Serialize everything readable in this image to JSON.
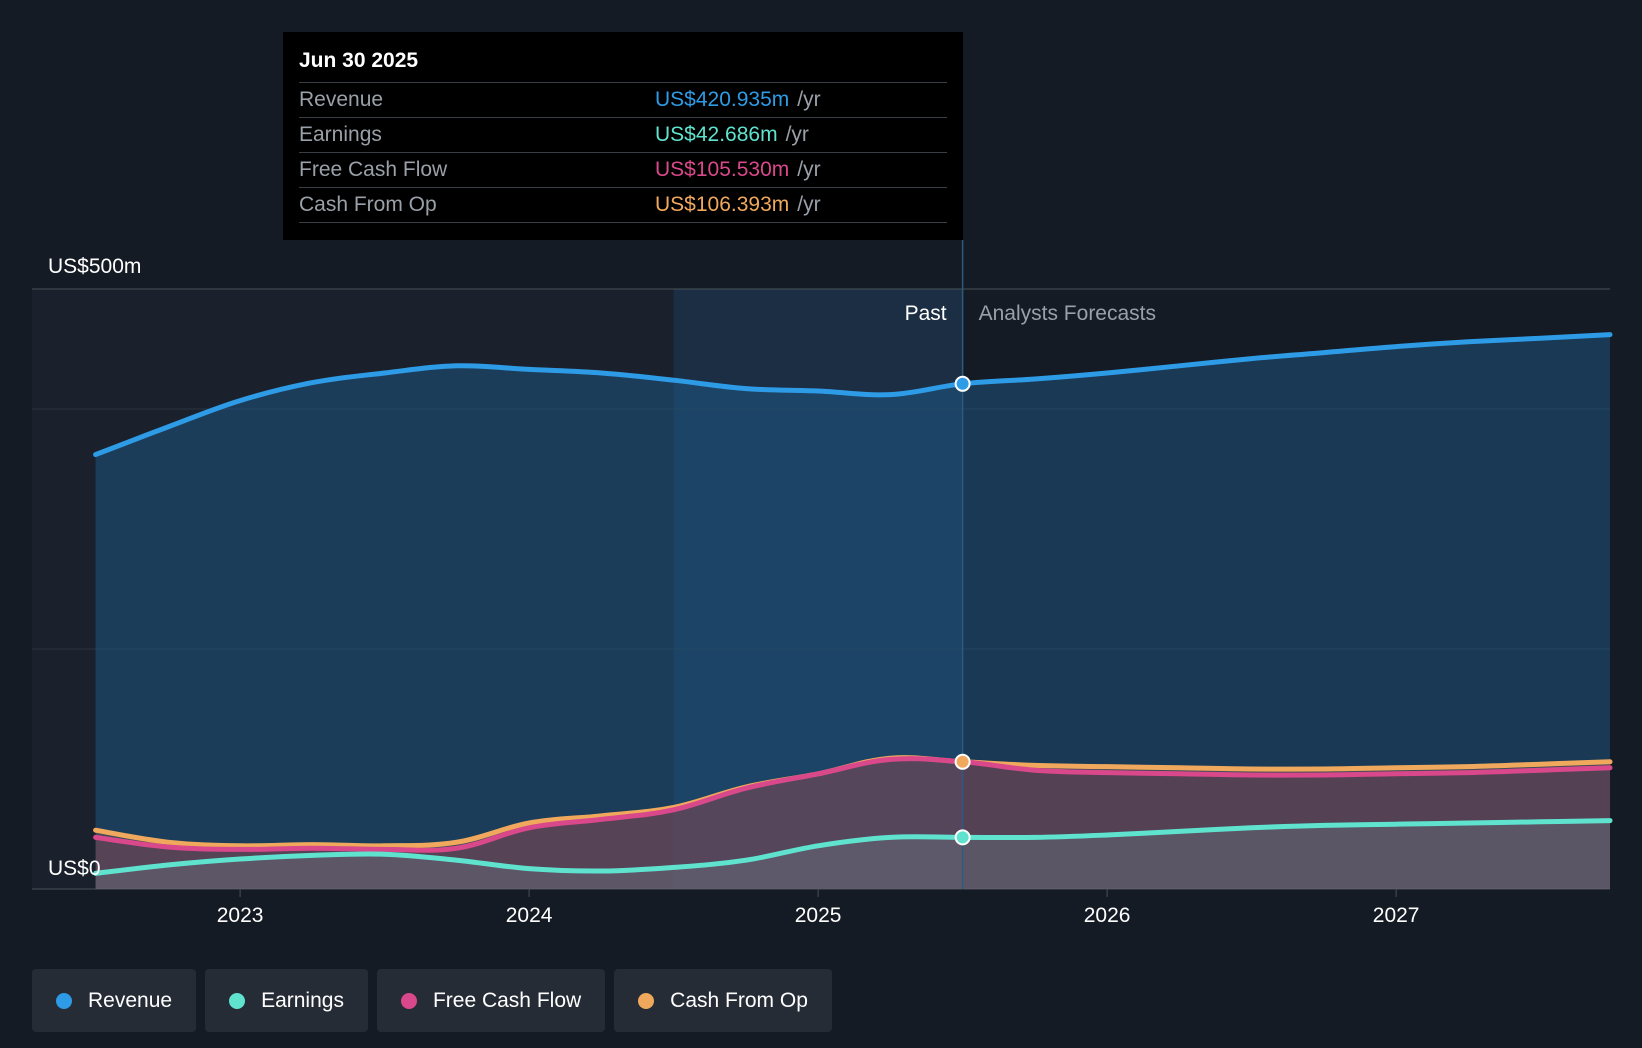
{
  "tooltip": {
    "date": "Jun 30 2025",
    "rows": [
      {
        "label": "Revenue",
        "value": "US$420.935m",
        "unit": "/yr",
        "color": "#2e9be6"
      },
      {
        "label": "Earnings",
        "value": "US$42.686m",
        "unit": "/yr",
        "color": "#5fe3cf"
      },
      {
        "label": "Free Cash Flow",
        "value": "US$105.530m",
        "unit": "/yr",
        "color": "#d9488a"
      },
      {
        "label": "Cash From Op",
        "value": "US$106.393m",
        "unit": "/yr",
        "color": "#f0a95c"
      }
    ]
  },
  "labels": {
    "past": "Past",
    "forecast": "Analysts Forecasts"
  },
  "legend": [
    {
      "label": "Revenue",
      "color": "#2e9be6"
    },
    {
      "label": "Earnings",
      "color": "#5fe3cf"
    },
    {
      "label": "Free Cash Flow",
      "color": "#d9488a"
    },
    {
      "label": "Cash From Op",
      "color": "#f0a95c"
    }
  ],
  "chart_data": {
    "type": "area",
    "ylim": [
      0,
      500
    ],
    "y_ticks": [
      {
        "value": 500,
        "label": "US$500m"
      },
      {
        "value": 0,
        "label": "US$0"
      }
    ],
    "x_ticks": [
      {
        "value": 2023.0,
        "label": "2023"
      },
      {
        "value": 2024.0,
        "label": "2024"
      },
      {
        "value": 2025.0,
        "label": "2025"
      },
      {
        "value": 2026.0,
        "label": "2026"
      },
      {
        "value": 2027.0,
        "label": "2027"
      }
    ],
    "xlim": [
      2022.28,
      2027.74
    ],
    "past_start": 2024.5,
    "current": 2025.5,
    "grid": true,
    "series": [
      {
        "name": "Revenue",
        "color": "#2e9be6",
        "points": [
          [
            2022.5,
            362
          ],
          [
            2022.75,
            385
          ],
          [
            2023.0,
            407
          ],
          [
            2023.25,
            422
          ],
          [
            2023.5,
            430
          ],
          [
            2023.75,
            436
          ],
          [
            2024.0,
            433
          ],
          [
            2024.25,
            430
          ],
          [
            2024.5,
            424
          ],
          [
            2024.75,
            417
          ],
          [
            2025.0,
            415
          ],
          [
            2025.25,
            412
          ],
          [
            2025.5,
            421
          ],
          [
            2025.75,
            425
          ],
          [
            2026.0,
            430
          ],
          [
            2026.25,
            436
          ],
          [
            2026.5,
            442
          ],
          [
            2026.75,
            447
          ],
          [
            2027.0,
            452
          ],
          [
            2027.25,
            456
          ],
          [
            2027.5,
            459
          ],
          [
            2027.74,
            462
          ]
        ]
      },
      {
        "name": "Cash From Op",
        "color": "#f0a95c",
        "points": [
          [
            2022.5,
            49
          ],
          [
            2022.75,
            39
          ],
          [
            2023.0,
            36
          ],
          [
            2023.25,
            37
          ],
          [
            2023.5,
            36
          ],
          [
            2023.75,
            39
          ],
          [
            2024.0,
            55
          ],
          [
            2024.25,
            61
          ],
          [
            2024.5,
            68
          ],
          [
            2024.75,
            85
          ],
          [
            2025.0,
            96
          ],
          [
            2025.25,
            109
          ],
          [
            2025.5,
            106
          ],
          [
            2025.75,
            103
          ],
          [
            2026.0,
            102
          ],
          [
            2026.25,
            101
          ],
          [
            2026.5,
            100
          ],
          [
            2026.75,
            100
          ],
          [
            2027.0,
            101
          ],
          [
            2027.25,
            102
          ],
          [
            2027.5,
            104
          ],
          [
            2027.74,
            106
          ]
        ]
      },
      {
        "name": "Free Cash Flow",
        "color": "#d9488a",
        "points": [
          [
            2022.5,
            43
          ],
          [
            2022.75,
            35
          ],
          [
            2023.0,
            33
          ],
          [
            2023.25,
            34
          ],
          [
            2023.5,
            33
          ],
          [
            2023.75,
            34
          ],
          [
            2024.0,
            51
          ],
          [
            2024.25,
            58
          ],
          [
            2024.5,
            66
          ],
          [
            2024.75,
            84
          ],
          [
            2025.0,
            96
          ],
          [
            2025.25,
            108
          ],
          [
            2025.5,
            106
          ],
          [
            2025.75,
            99
          ],
          [
            2026.0,
            97
          ],
          [
            2026.25,
            96
          ],
          [
            2026.5,
            95
          ],
          [
            2026.75,
            95
          ],
          [
            2027.0,
            96
          ],
          [
            2027.25,
            97
          ],
          [
            2027.5,
            99
          ],
          [
            2027.74,
            101
          ]
        ]
      },
      {
        "name": "Earnings",
        "color": "#5fe3cf",
        "points": [
          [
            2022.5,
            13
          ],
          [
            2022.75,
            20
          ],
          [
            2023.0,
            25
          ],
          [
            2023.25,
            28
          ],
          [
            2023.5,
            29
          ],
          [
            2023.75,
            24
          ],
          [
            2024.0,
            17
          ],
          [
            2024.25,
            15
          ],
          [
            2024.5,
            18
          ],
          [
            2024.75,
            24
          ],
          [
            2025.0,
            36
          ],
          [
            2025.25,
            43
          ],
          [
            2025.5,
            43
          ],
          [
            2025.75,
            43
          ],
          [
            2026.0,
            45
          ],
          [
            2026.25,
            48
          ],
          [
            2026.5,
            51
          ],
          [
            2026.75,
            53
          ],
          [
            2027.0,
            54
          ],
          [
            2027.25,
            55
          ],
          [
            2027.5,
            56
          ],
          [
            2027.74,
            57
          ]
        ]
      }
    ],
    "markers": [
      {
        "series": "Revenue",
        "x": 2025.5,
        "y": 421
      },
      {
        "series": "Cash From Op",
        "x": 2025.5,
        "y": 106
      },
      {
        "series": "Earnings",
        "x": 2025.5,
        "y": 43
      }
    ]
  }
}
